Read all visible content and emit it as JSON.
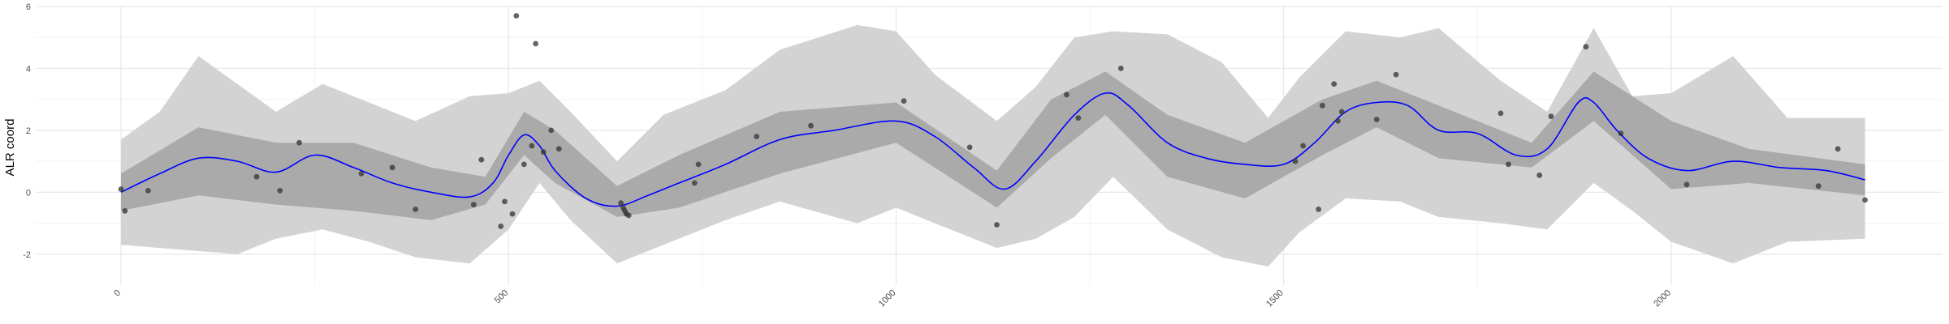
{
  "chart_data": {
    "type": "line",
    "ylabel": "ALR coord",
    "xlabel": "",
    "xlim": [
      -110,
      2350
    ],
    "ylim": [
      -3,
      6
    ],
    "grid": true,
    "x_ticks": [
      0,
      500,
      1000,
      1500,
      2000
    ],
    "x_tick_labels": [
      "0",
      "500",
      "1000",
      "1500",
      "2000"
    ],
    "y_ticks": [
      -2,
      0,
      2,
      4,
      6
    ],
    "y_tick_labels": [
      "-2",
      "0",
      "2",
      "4",
      "6"
    ],
    "colors": {
      "mean_line": "#0000ff",
      "inner_band": "#aaaaaa",
      "outer_band": "#d3d3d3",
      "points": "#333333",
      "grid_major": "#e6e6e6",
      "grid_minor": "#f2f2f2"
    },
    "series": [
      {
        "type": "line",
        "x": [
          0,
          50,
          100,
          150,
          200,
          250,
          300,
          350,
          400,
          450,
          480,
          500,
          520,
          540,
          560,
          600,
          640,
          680,
          720,
          780,
          850,
          920,
          1000,
          1050,
          1100,
          1140,
          1180,
          1230,
          1270,
          1300,
          1350,
          1400,
          1450,
          1500,
          1540,
          1580,
          1620,
          1660,
          1700,
          1750,
          1800,
          1840,
          1880,
          1900,
          1930,
          1970,
          2020,
          2080,
          2140,
          2200,
          2250
        ],
        "y": [
          0.0,
          0.6,
          1.1,
          1.0,
          0.65,
          1.2,
          0.8,
          0.3,
          0.0,
          -0.15,
          0.3,
          1.2,
          1.85,
          1.5,
          0.7,
          -0.2,
          -0.45,
          -0.1,
          0.3,
          0.9,
          1.7,
          2.0,
          2.3,
          1.8,
          0.8,
          0.1,
          1.0,
          2.5,
          3.2,
          2.8,
          1.6,
          1.1,
          0.9,
          0.9,
          1.6,
          2.6,
          2.9,
          2.8,
          2.0,
          1.9,
          1.2,
          1.4,
          2.9,
          2.9,
          2.0,
          1.1,
          0.7,
          1.0,
          0.8,
          0.7,
          0.4
        ]
      },
      {
        "type": "band",
        "x": [
          0,
          100,
          200,
          300,
          400,
          470,
          520,
          560,
          640,
          720,
          850,
          1000,
          1130,
          1200,
          1270,
          1350,
          1450,
          1550,
          1620,
          1700,
          1820,
          1900,
          2000,
          2100,
          2250
        ],
        "lower": [
          -0.6,
          -0.1,
          -0.4,
          -0.6,
          -0.9,
          -0.4,
          1.2,
          0.3,
          -0.8,
          -0.5,
          0.6,
          1.6,
          -0.5,
          1.1,
          2.5,
          0.5,
          -0.2,
          1.2,
          2.1,
          1.1,
          0.8,
          2.3,
          0.1,
          0.3,
          -0.1
        ],
        "upper": [
          0.6,
          2.1,
          1.6,
          1.6,
          0.8,
          0.5,
          2.6,
          2.0,
          0.2,
          1.2,
          2.6,
          2.9,
          0.7,
          3.0,
          3.9,
          2.5,
          1.6,
          3.0,
          3.6,
          2.8,
          1.6,
          3.9,
          2.3,
          1.4,
          0.9
        ]
      },
      {
        "type": "band",
        "x": [
          0,
          50,
          100,
          150,
          200,
          260,
          320,
          380,
          450,
          500,
          540,
          580,
          640,
          700,
          780,
          850,
          950,
          1000,
          1050,
          1130,
          1180,
          1230,
          1280,
          1350,
          1420,
          1480,
          1520,
          1580,
          1650,
          1700,
          1780,
          1840,
          1900,
          1950,
          2000,
          2080,
          2150,
          2250
        ],
        "lower": [
          -1.7,
          -1.8,
          -1.9,
          -2.0,
          -1.5,
          -1.2,
          -1.6,
          -2.1,
          -2.3,
          -1.2,
          0.3,
          -0.9,
          -2.3,
          -1.7,
          -0.9,
          -0.3,
          -1.0,
          -0.5,
          -1.0,
          -1.8,
          -1.5,
          -0.8,
          0.5,
          -1.2,
          -2.1,
          -2.4,
          -1.3,
          -0.2,
          -0.3,
          -0.8,
          -1.0,
          -1.2,
          0.3,
          -0.6,
          -1.6,
          -2.3,
          -1.6,
          -1.5
        ],
        "upper": [
          1.7,
          2.6,
          4.4,
          3.5,
          2.6,
          3.5,
          2.9,
          2.3,
          3.1,
          3.2,
          3.6,
          2.6,
          1.0,
          2.5,
          3.3,
          4.6,
          5.4,
          5.2,
          3.8,
          2.3,
          3.4,
          5.0,
          5.2,
          5.1,
          4.2,
          2.4,
          3.7,
          5.2,
          5.0,
          5.3,
          3.6,
          2.6,
          5.3,
          3.1,
          3.2,
          4.4,
          2.4,
          2.4
        ]
      },
      {
        "type": "scatter",
        "x": [
          0,
          5,
          35,
          175,
          205,
          230,
          310,
          350,
          380,
          455,
          465,
          490,
          495,
          505,
          510,
          520,
          530,
          535,
          545,
          555,
          565,
          645,
          648,
          650,
          652,
          655,
          740,
          745,
          820,
          890,
          1010,
          1095,
          1130,
          1220,
          1235,
          1290,
          1515,
          1525,
          1545,
          1550,
          1565,
          1570,
          1575,
          1620,
          1645,
          1780,
          1790,
          1830,
          1845,
          1890,
          1935,
          2020,
          2190,
          2215,
          2250
        ],
        "y": [
          0.1,
          -0.6,
          0.05,
          0.5,
          0.05,
          1.6,
          0.6,
          0.8,
          -0.55,
          -0.4,
          1.05,
          -1.1,
          -0.3,
          -0.7,
          5.7,
          0.9,
          1.5,
          4.8,
          1.3,
          2.0,
          1.4,
          -0.35,
          -0.5,
          -0.6,
          -0.7,
          -0.75,
          0.3,
          0.9,
          1.8,
          2.15,
          2.95,
          1.45,
          -1.05,
          3.15,
          2.4,
          4.0,
          1.0,
          1.5,
          -0.55,
          2.8,
          3.5,
          2.3,
          2.6,
          2.35,
          3.8,
          2.55,
          0.9,
          0.55,
          2.45,
          4.7,
          1.9,
          0.25,
          0.2,
          1.4,
          -0.25
        ]
      }
    ]
  }
}
